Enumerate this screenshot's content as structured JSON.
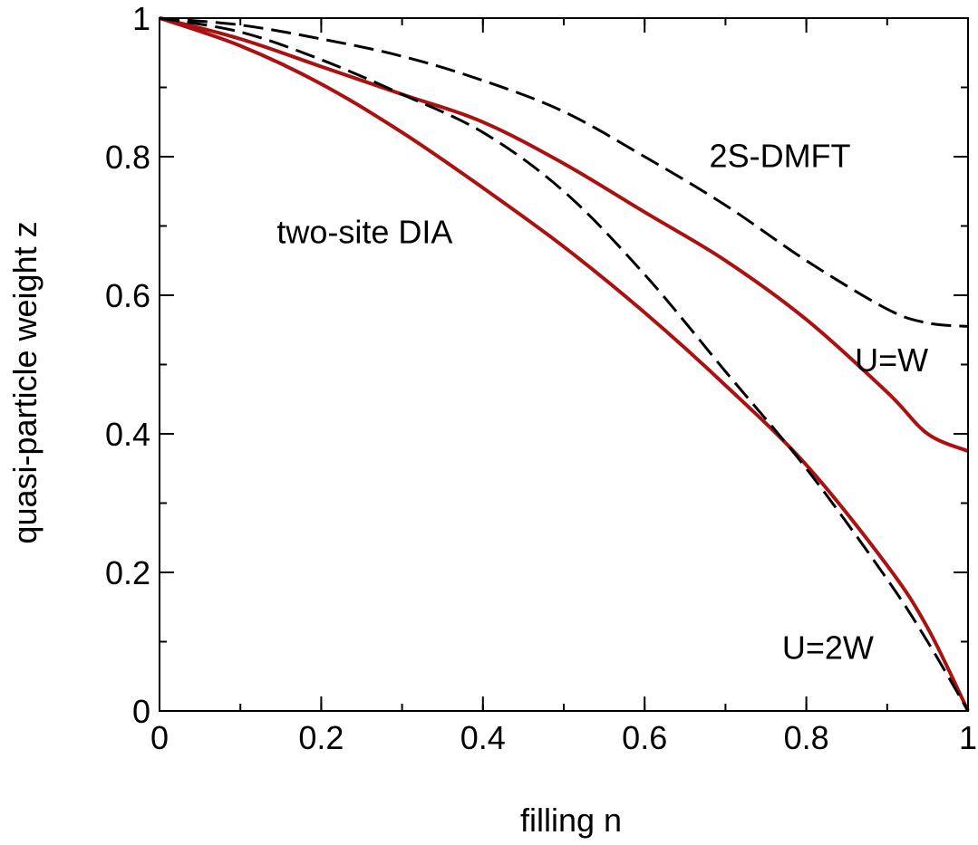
{
  "chart_data": {
    "type": "line",
    "title": "",
    "xlabel": "filling  n",
    "ylabel": "quasi-particle weight  z",
    "xlim": [
      0,
      1
    ],
    "ylim": [
      0,
      1
    ],
    "xticks": [
      0,
      0.2,
      0.4,
      0.6,
      0.8,
      1
    ],
    "yticks": [
      0,
      0.2,
      0.4,
      0.6,
      0.8,
      1
    ],
    "xtick_labels": [
      "0",
      "0.2",
      "0.4",
      "0.6",
      "0.8",
      "1"
    ],
    "ytick_labels": [
      "0",
      "0.2",
      "0.4",
      "0.6",
      "0.8",
      "1"
    ],
    "minor_tick_step": 0.1,
    "grid": false,
    "legend": "none",
    "colors": {
      "dia": "#aa1111",
      "dmft": "#000000"
    },
    "series": [
      {
        "style": "solid",
        "color": "#aa1111",
        "x": [
          0,
          0.1,
          0.2,
          0.3,
          0.4,
          0.5,
          0.6,
          0.7,
          0.8,
          0.9,
          0.95,
          1.0
        ],
        "y": [
          1.0,
          0.97,
          0.93,
          0.89,
          0.85,
          0.79,
          0.72,
          0.65,
          0.565,
          0.46,
          0.4,
          0.375
        ]
      },
      {
        "style": "solid",
        "color": "#aa1111",
        "x": [
          0,
          0.1,
          0.2,
          0.3,
          0.4,
          0.5,
          0.6,
          0.7,
          0.8,
          0.9,
          0.95,
          1.0
        ],
        "y": [
          1.0,
          0.96,
          0.905,
          0.835,
          0.755,
          0.67,
          0.575,
          0.47,
          0.355,
          0.21,
          0.12,
          0.0
        ]
      },
      {
        "style": "dashed",
        "color": "#000000",
        "x": [
          0,
          0.1,
          0.2,
          0.3,
          0.4,
          0.5,
          0.6,
          0.7,
          0.8,
          0.9,
          0.95,
          1.0
        ],
        "y": [
          1.0,
          0.99,
          0.97,
          0.945,
          0.91,
          0.865,
          0.8,
          0.73,
          0.65,
          0.58,
          0.56,
          0.555
        ]
      },
      {
        "style": "dashed",
        "color": "#000000",
        "x": [
          0,
          0.1,
          0.2,
          0.3,
          0.4,
          0.5,
          0.6,
          0.7,
          0.8,
          0.9,
          0.95,
          1.0
        ],
        "y": [
          1.0,
          0.98,
          0.94,
          0.89,
          0.835,
          0.75,
          0.63,
          0.49,
          0.35,
          0.19,
          0.1,
          0.0
        ]
      }
    ],
    "annotations": [
      {
        "text": "2S-DMFT",
        "x": 0.68,
        "y": 0.785
      },
      {
        "text": "two-site DIA",
        "x": 0.145,
        "y": 0.675
      },
      {
        "text": "U=W",
        "x": 0.86,
        "y": 0.49
      },
      {
        "text": "U=2W",
        "x": 0.77,
        "y": 0.075
      }
    ]
  }
}
